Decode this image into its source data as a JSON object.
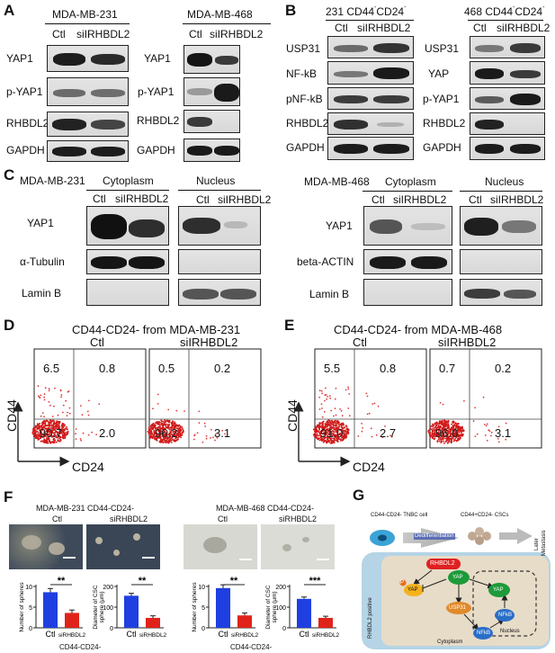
{
  "panels": {
    "A": {
      "letter": "A",
      "left": {
        "cell": "MDA-MB-231",
        "ctl": "Ctl",
        "si": "siIRHBDL2",
        "rows": [
          "YAP1",
          "p-YAP1",
          "RHBDL2",
          "GAPDH"
        ]
      },
      "right": {
        "cell": "MDA-MB-468",
        "ctl": "Ctl",
        "si": "siIRHBDL2",
        "rows": [
          "YAP1",
          "p-YAP1",
          "RHBDL2",
          "GAPDH"
        ]
      }
    },
    "B": {
      "letter": "B",
      "left": {
        "cell_prefix": "231 CD44",
        "sup1": "-",
        "mid": "CD24",
        "sup2": "-",
        "ctl": "Ctl",
        "si": "siIRHBDL2",
        "rows": [
          "USP31",
          "NF-kB",
          "pNF-kB",
          "RHBDL2",
          "GAPDH"
        ]
      },
      "right": {
        "cell_prefix": "468 CD44",
        "sup1": "-",
        "mid": "CD24",
        "sup2": "-",
        "ctl": "Ctl",
        "si": "siIRHBDL2",
        "rows": [
          "USP31",
          "YAP",
          "p-YAP1",
          "RHBDL2",
          "GAPDH"
        ]
      }
    },
    "C": {
      "letter": "C",
      "left": {
        "cell": "MDA-MB-231",
        "cyto": "Cytoplasm",
        "nuc": "Nucleus",
        "ctl": "Ctl",
        "si": "siIRHBDL2",
        "rows": [
          "YAP1",
          "α-Tubulin",
          "Lamin B"
        ]
      },
      "right": {
        "cell": "MDA-MB-468",
        "cyto": "Cytoplasm",
        "nuc": "Nucleus",
        "ctl": "Ctl",
        "si": "siIRHBDL2",
        "rows": [
          "YAP1",
          "beta-ACTIN",
          "Lamin B"
        ]
      }
    },
    "D": {
      "letter": "D",
      "title": "CD44-CD24- from MDA-MB-231",
      "ylabel": "CD44",
      "xlabel": "CD24",
      "plots": [
        {
          "label": "Ctl",
          "q1": "6.5",
          "q2": "0.8",
          "q3": "90.7",
          "q4": "2.0"
        },
        {
          "label": "siIRHBDL2",
          "q1": "0.5",
          "q2": "0.2",
          "q3": "96.2",
          "q4": "3.1"
        }
      ]
    },
    "E": {
      "letter": "E",
      "title": "CD44-CD24- from MDA-MB-468",
      "ylabel": "CD44",
      "xlabel": "CD24",
      "plots": [
        {
          "label": "Ctl",
          "q1": "5.5",
          "q2": "0.8",
          "q3": "91.0",
          "q4": "2.7"
        },
        {
          "label": "siIRHBDL2",
          "q1": "0.7",
          "q2": "0.2",
          "q3": "96.0",
          "q4": "3.1"
        }
      ]
    },
    "F": {
      "letter": "F",
      "left": {
        "title": "MDA-MB-231 CD44-CD24-",
        "ctl": "Ctl",
        "si": "siRHBDL2",
        "footer": "CD44-CD24-",
        "bar1": {
          "ylabel": "Number of spheres",
          "sig": "**",
          "ticks": [
            "0",
            "5",
            "10"
          ],
          "ymax": 10,
          "cats": [
            "Ctl",
            "siRHBDL2"
          ],
          "values": [
            8.6,
            3.6
          ],
          "errors": [
            0.9,
            0.7
          ]
        },
        "bar2": {
          "ylabel1": "Diameter of CSC",
          "ylabel2": "sphere (μm)",
          "sig": "**",
          "ticks": [
            "0",
            "100",
            "200"
          ],
          "ymax": 200,
          "cats": [
            "Ctl",
            "siRHBDL2"
          ],
          "values": [
            155,
            48
          ],
          "errors": [
            12,
            10
          ]
        }
      },
      "right": {
        "title": "MDA-MB-468 CD44-CD24-",
        "ctl": "Ctl",
        "si": "siRHBDL2",
        "footer": "CD44-CD24-",
        "bar1": {
          "ylabel": "Number of spheres",
          "sig": "**",
          "ticks": [
            "0",
            "5",
            "10"
          ],
          "ymax": 10,
          "cats": [
            "Ctl",
            "siRHBDL2"
          ],
          "values": [
            9.6,
            3.0
          ],
          "errors": [
            0.8,
            0.6
          ]
        },
        "bar2": {
          "ylabel1": "Diameter of CSC",
          "ylabel2": "sphere (μm)",
          "sig": "***",
          "ticks": [
            "0",
            "100",
            "200"
          ],
          "ymax": 200,
          "cats": [
            "Ctl",
            "siRHBDL2"
          ],
          "values": [
            140,
            48
          ],
          "errors": [
            9,
            8
          ]
        }
      }
    },
    "G": {
      "letter": "G",
      "tnbc": "CD44-CD24- TNBC cell",
      "csc": "CD44+CD24- CSCs",
      "dediff": "Dedifferentiation",
      "later1": "Later",
      "later2": "Metastasis",
      "rhbdl2": "RHBDL2",
      "side": "RHBDL2 positive",
      "yap_p": "YAP",
      "yap_c": "YAP",
      "usp31": "USP31",
      "nfkb_c": "NFkB",
      "nfkb_n": "NFkB",
      "yap_n": "YAP",
      "p": "P",
      "cytoplasm": "Cytoplasm",
      "nucleus": "Nucleus"
    }
  }
}
